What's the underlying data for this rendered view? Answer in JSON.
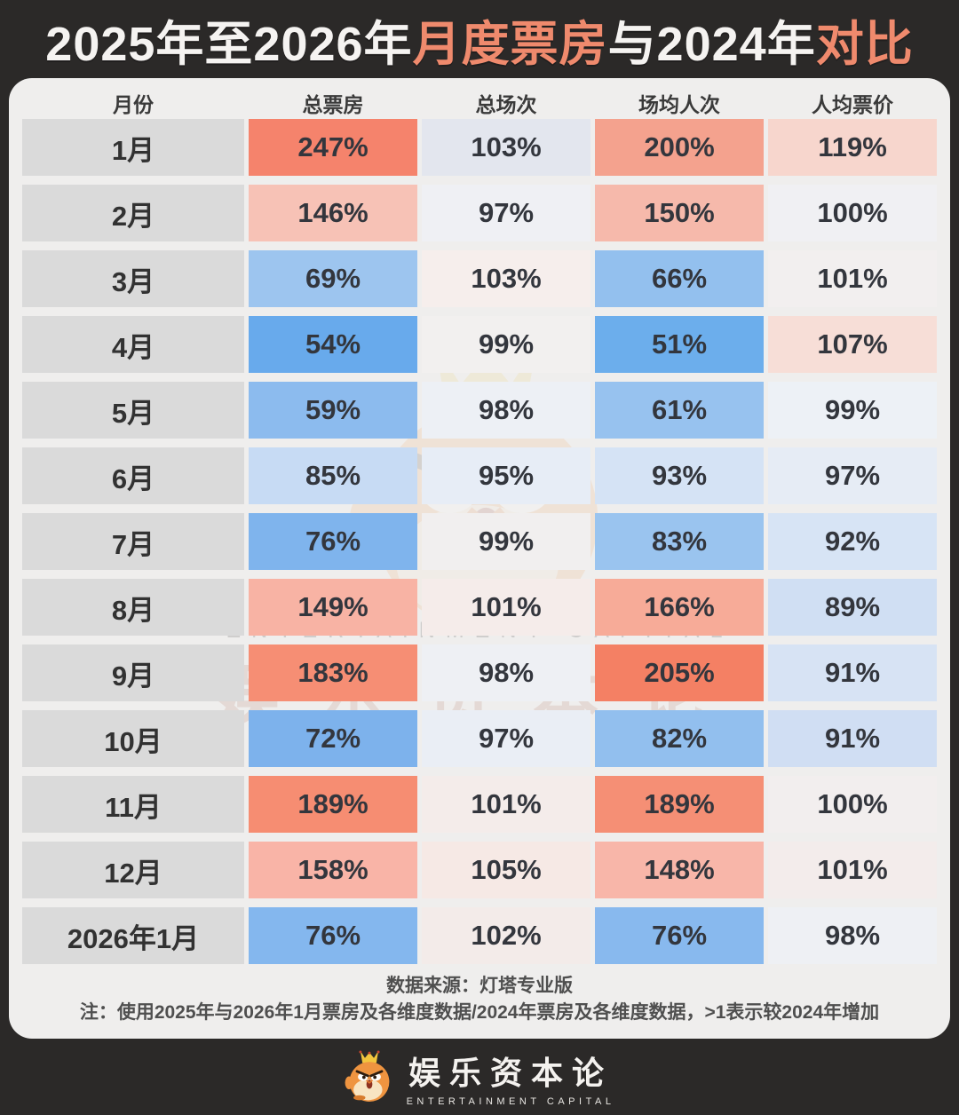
{
  "title": {
    "segments": [
      {
        "text": "2025年至2026年",
        "accent": false
      },
      {
        "text": "月度票房",
        "accent": true
      },
      {
        "text": "与2024年",
        "accent": false
      },
      {
        "text": "对比",
        "accent": true
      }
    ]
  },
  "colors": {
    "page_bg": "#2b2928",
    "card_bg": "#efeeed",
    "title_accent": "#ef8a6d",
    "title_text": "#f5f3f1",
    "month_cell_bg": "#dadada",
    "cell_text": "#33363d",
    "increase_strong": "#f5836c",
    "decrease_strong": "#68aaec"
  },
  "table": {
    "headers": [
      "月份",
      "总票房",
      "总场次",
      "场均人次",
      "人均票价"
    ],
    "rows": [
      {
        "month": "1月",
        "cells": [
          {
            "value": "247%",
            "bg": "#f5836c"
          },
          {
            "value": "103%",
            "bg": "#e3e6ee"
          },
          {
            "value": "200%",
            "bg": "#f4a28e"
          },
          {
            "value": "119%",
            "bg": "#f7d6cd"
          }
        ]
      },
      {
        "month": "2月",
        "cells": [
          {
            "value": "146%",
            "bg": "#f7c2b6"
          },
          {
            "value": "97%",
            "bg": "#eff0f4"
          },
          {
            "value": "150%",
            "bg": "#f6b9ab"
          },
          {
            "value": "100%",
            "bg": "#f0f0f3"
          }
        ]
      },
      {
        "month": "3月",
        "cells": [
          {
            "value": "69%",
            "bg": "#9dc5ef"
          },
          {
            "value": "103%",
            "bg": "#f6eeec"
          },
          {
            "value": "66%",
            "bg": "#93c0ee"
          },
          {
            "value": "101%",
            "bg": "#f2efef"
          }
        ]
      },
      {
        "month": "4月",
        "cells": [
          {
            "value": "54%",
            "bg": "#68aaec"
          },
          {
            "value": "99%",
            "bg": "#f2f0ef"
          },
          {
            "value": "51%",
            "bg": "#6caeec"
          },
          {
            "value": "107%",
            "bg": "#f7ded7"
          }
        ]
      },
      {
        "month": "5月",
        "cells": [
          {
            "value": "59%",
            "bg": "#8cbbee"
          },
          {
            "value": "98%",
            "bg": "#edf0f5"
          },
          {
            "value": "61%",
            "bg": "#97c2ef"
          },
          {
            "value": "99%",
            "bg": "#edf1f6"
          }
        ]
      },
      {
        "month": "6月",
        "cells": [
          {
            "value": "85%",
            "bg": "#c7dbf4"
          },
          {
            "value": "95%",
            "bg": "#e7edf6"
          },
          {
            "value": "93%",
            "bg": "#d5e3f5"
          },
          {
            "value": "97%",
            "bg": "#e6ecf5"
          }
        ]
      },
      {
        "month": "7月",
        "cells": [
          {
            "value": "76%",
            "bg": "#7fb4ed"
          },
          {
            "value": "99%",
            "bg": "#f1efef"
          },
          {
            "value": "83%",
            "bg": "#9ac4ef"
          },
          {
            "value": "92%",
            "bg": "#d7e4f5"
          }
        ]
      },
      {
        "month": "8月",
        "cells": [
          {
            "value": "149%",
            "bg": "#f8b3a4"
          },
          {
            "value": "101%",
            "bg": "#f5ecea"
          },
          {
            "value": "166%",
            "bg": "#f7ab98"
          },
          {
            "value": "89%",
            "bg": "#d0dff3"
          }
        ]
      },
      {
        "month": "9月",
        "cells": [
          {
            "value": "183%",
            "bg": "#f68e74"
          },
          {
            "value": "98%",
            "bg": "#eef0f4"
          },
          {
            "value": "205%",
            "bg": "#f48064"
          },
          {
            "value": "91%",
            "bg": "#d7e3f4"
          }
        ]
      },
      {
        "month": "10月",
        "cells": [
          {
            "value": "72%",
            "bg": "#7db2ec"
          },
          {
            "value": "97%",
            "bg": "#eaeef5"
          },
          {
            "value": "82%",
            "bg": "#92bfee"
          },
          {
            "value": "91%",
            "bg": "#d0def3"
          }
        ]
      },
      {
        "month": "11月",
        "cells": [
          {
            "value": "189%",
            "bg": "#f68d72"
          },
          {
            "value": "101%",
            "bg": "#f4ecea"
          },
          {
            "value": "189%",
            "bg": "#f58f75"
          },
          {
            "value": "100%",
            "bg": "#f2eeee"
          }
        ]
      },
      {
        "month": "12月",
        "cells": [
          {
            "value": "158%",
            "bg": "#f9b4a7"
          },
          {
            "value": "105%",
            "bg": "#f6e9e5"
          },
          {
            "value": "148%",
            "bg": "#f8b6a9"
          },
          {
            "value": "101%",
            "bg": "#f3eceb"
          }
        ]
      },
      {
        "month": "2026年1月",
        "cells": [
          {
            "value": "76%",
            "bg": "#84b7ee"
          },
          {
            "value": "102%",
            "bg": "#f3ebe9"
          },
          {
            "value": "76%",
            "bg": "#88b9ee"
          },
          {
            "value": "98%",
            "bg": "#eef0f4"
          }
        ]
      }
    ]
  },
  "chart_data": {
    "type": "heatmap",
    "title": "2025年至2026年月度票房与2024年对比",
    "categories": [
      "1月",
      "2月",
      "3月",
      "4月",
      "5月",
      "6月",
      "7月",
      "8月",
      "9月",
      "10月",
      "11月",
      "12月",
      "2026年1月"
    ],
    "series": [
      {
        "name": "总票房",
        "values": [
          247,
          146,
          69,
          54,
          59,
          85,
          76,
          149,
          183,
          72,
          189,
          158,
          76
        ],
        "unit": "%"
      },
      {
        "name": "总场次",
        "values": [
          103,
          97,
          103,
          99,
          98,
          95,
          99,
          101,
          98,
          97,
          101,
          105,
          102
        ],
        "unit": "%"
      },
      {
        "name": "场均人次",
        "values": [
          200,
          150,
          66,
          51,
          61,
          93,
          83,
          166,
          205,
          82,
          189,
          148,
          76
        ],
        "unit": "%"
      },
      {
        "name": "人均票价",
        "values": [
          119,
          100,
          101,
          107,
          99,
          97,
          92,
          89,
          91,
          91,
          100,
          101,
          98
        ],
        "unit": "%"
      }
    ],
    "color_scale": {
      "above_100": "salmon-red",
      "near_100": "near-white",
      "below_100": "blue"
    },
    "legend_position": "none",
    "grid": false
  },
  "footnote": {
    "source": "数据来源：灯塔专业版",
    "note": "注：使用2025年与2026年1月票房及各维度数据/2024年票房及各维度数据，>1表示较2024年增加"
  },
  "watermark": {
    "en": "ENTERTAINMENT CAPITAL",
    "cn": "娱乐资本论",
    "icon": "mascot-watermark-icon"
  },
  "brand": {
    "name_cn": "娱乐资本论",
    "name_en": "ENTERTAINMENT CAPITAL",
    "icon": "mascot-logo-icon"
  }
}
